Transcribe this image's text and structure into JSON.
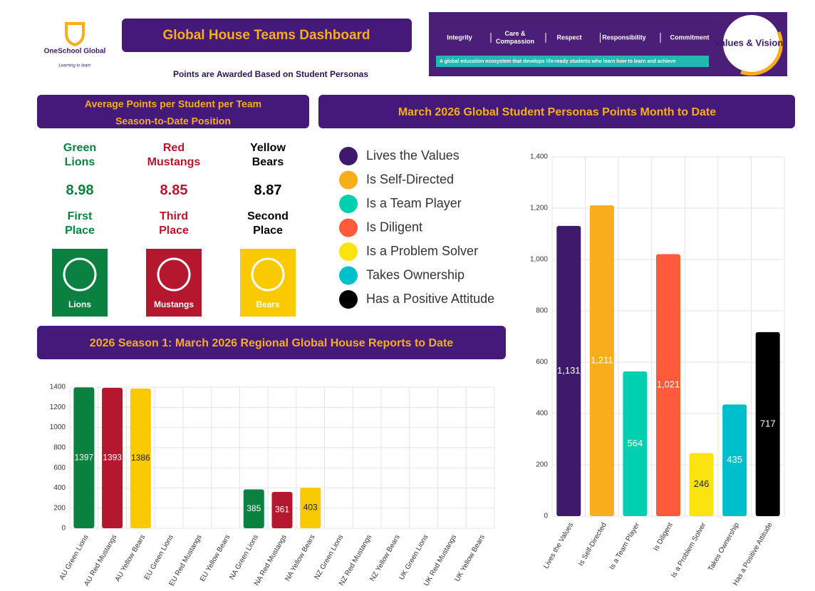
{
  "header": {
    "logo_name": "OneSchool Global",
    "logo_tagline": "Learning to learn",
    "title": "Global House Teams Dashboard",
    "subtitle": "Points are Awarded Based on Student Personas"
  },
  "banner": {
    "values": [
      "Integrity",
      "Care & Compassion",
      "Respect",
      "Responsibility",
      "Commitment"
    ],
    "tagline": "A global education ecosystem that develops life-ready students who learn how to learn and achieve",
    "badge": "Values & Vision"
  },
  "standings": {
    "title": "Average Points per Student per Team",
    "subtitle": "Season-to-Date Position",
    "teams": [
      {
        "name": "Green Lions",
        "value": 8.98,
        "place": "First Place",
        "logo": "Lions",
        "color": "#0a8140"
      },
      {
        "name": "Red Mustangs",
        "value": 8.85,
        "place": "Third Place",
        "logo": "Mustangs",
        "color": "#b5172f"
      },
      {
        "name": "Yellow Bears",
        "value": 8.87,
        "place": "Second Place",
        "logo": "Bears",
        "color": "#f9c901"
      }
    ]
  },
  "chart_data": [
    {
      "type": "bar",
      "title": "2026 Season 1:  March 2026 Regional Global House Reports to Date",
      "categories": [
        "AU Green Lions",
        "AU Red Mustangs",
        "AU Yellow Bears",
        "EU Green Lions",
        "EU Red Mustangs",
        "EU Yellow Bears",
        "NA Green Lions",
        "NA Red Mustangs",
        "NA Yellow Bears",
        "NZ Green Lions",
        "NZ Red Mustangs",
        "NZ Yellow Bears",
        "UK Green Lions",
        "UK Red Mustangs",
        "UK Yellow Bears"
      ],
      "values": [
        1397,
        1393,
        1386,
        null,
        null,
        null,
        385,
        361,
        403,
        null,
        null,
        null,
        null,
        null,
        null
      ],
      "colors": [
        "#0a8140",
        "#b5172f",
        "#f9c901",
        "#0a8140",
        "#b5172f",
        "#f9c901",
        "#0a8140",
        "#b5172f",
        "#f9c901",
        "#0a8140",
        "#b5172f",
        "#f9c901",
        "#0a8140",
        "#b5172f",
        "#f9c901"
      ],
      "ylim": [
        0,
        1400
      ],
      "yticks": [
        0,
        200,
        400,
        600,
        800,
        1000,
        1200,
        1400
      ],
      "grid": true
    },
    {
      "type": "bar",
      "title": "March 2026 Global Student Personas Points Month to Date",
      "categories": [
        "Lives the Values",
        "Is Self-Directed",
        "Is a Team Player",
        "Is Diligent",
        "Is a Problem Solver",
        "Takes Ownership",
        "Has a Positive Attitude"
      ],
      "values": [
        1131,
        1211,
        564,
        1021,
        246,
        435,
        717
      ],
      "value_labels": [
        "1,131",
        "1,211",
        "564",
        "1,021",
        "246",
        "435",
        "717"
      ],
      "colors": [
        "#3f1a6c",
        "#f7ae1a",
        "#00cfb0",
        "#ff5a3c",
        "#fae30f",
        "#00bfcc",
        "#000000"
      ],
      "ylim": [
        0,
        1400
      ],
      "yticks": [
        0,
        200,
        400,
        600,
        800,
        {
          "value": 1000,
          "label": "1,000"
        },
        {
          "value": 1200,
          "label": "1,200"
        },
        {
          "value": 1400,
          "label": "1,400"
        }
      ],
      "grid": true,
      "legend": "left"
    }
  ]
}
